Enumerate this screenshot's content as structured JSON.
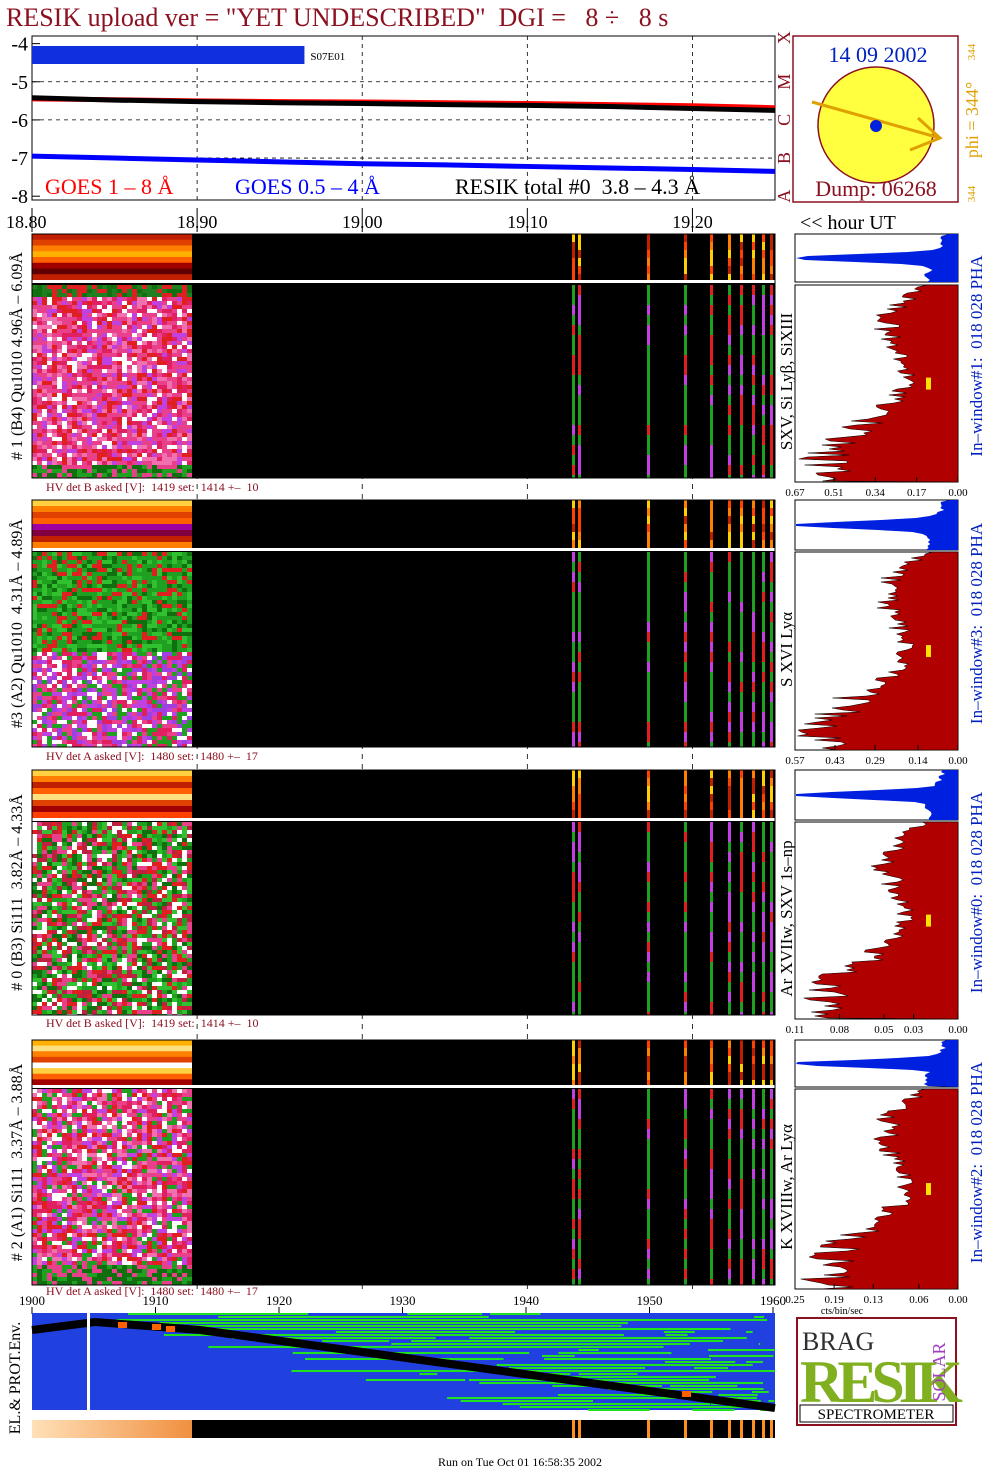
{
  "title": "RESIK upload ver = \"YET UNDESCRIBED\"  DGI =   8 ÷   8 s",
  "chart_data": {
    "type": "line",
    "x": [
      18.8,
      18.85,
      18.9,
      18.95,
      19.0,
      19.05,
      19.1,
      19.15,
      19.2,
      19.25
    ],
    "xlim": [
      18.8,
      19.25
    ],
    "xticks": [
      {
        "value": 18.8,
        "label": "18.80"
      },
      {
        "value": 18.9,
        "label": "18.90"
      },
      {
        "value": 19.0,
        "label": "19.00"
      },
      {
        "value": 19.1,
        "label": "19.10"
      },
      {
        "value": 19.2,
        "label": "19.20"
      }
    ],
    "x_label": "<< hour UT",
    "ylim": [
      -8.1,
      -3.8
    ],
    "yticks": [
      -4,
      -5,
      -6,
      -7,
      -8
    ],
    "grid": true,
    "class_labels": [
      "X",
      "M",
      "C",
      "B",
      "A"
    ],
    "series": [
      {
        "name": "GOES 1 – 8 Å",
        "color": "#ff0000",
        "values": [
          -5.45,
          -5.47,
          -5.5,
          -5.52,
          -5.53,
          -5.55,
          -5.57,
          -5.6,
          -5.63,
          -5.68
        ]
      },
      {
        "name": "GOES 0.5 – 4 Å",
        "color": "#0000ff",
        "values": [
          -6.95,
          -7.0,
          -7.05,
          -7.1,
          -7.15,
          -7.18,
          -7.22,
          -7.26,
          -7.3,
          -7.35
        ]
      },
      {
        "name": "RESIK total #0  3.8 – 4.3 Å",
        "color": "#000000",
        "values": [
          -5.42,
          -5.48,
          -5.52,
          -5.55,
          -5.57,
          -5.6,
          -5.62,
          -5.65,
          -5.7,
          -5.75
        ]
      }
    ],
    "event": {
      "label": "S07E01",
      "start": 18.8,
      "end": 18.965,
      "color": "#1030e0"
    }
  },
  "sun": {
    "date": "14 09 2002",
    "phi": "phi = 344°",
    "phi_top": "344",
    "phi_bottom": "344",
    "dump": "Dump: 06268"
  },
  "detectors": [
    {
      "label": "# 1 (B4) Qu1010 4.96Å – 6.09Å",
      "line_label": "SXV, Si Lyβ, SiXIII",
      "hv": "HV det B asked [V]:  1419 set:  1414 +–  10",
      "pha_label": "In–window#1:  018 028 PHA",
      "pha_xlim": [
        0.67,
        0
      ],
      "pha_xticks": [
        0.67,
        0.51,
        0.34,
        0.17,
        {
          "value": 0,
          "label": "0.00"
        }
      ]
    },
    {
      "label": "#3 (A2) Qu1010  4.31Å – 4.89Å",
      "line_label": "S XVI Lyα",
      "hv": "HV det A asked [V]:  1480 set:  1480 +–  17",
      "pha_label": "In–window#3:  018 028 PHA",
      "pha_xlim": [
        0.57,
        0
      ],
      "pha_xticks": [
        0.57,
        0.43,
        0.29,
        0.14,
        {
          "value": 0,
          "label": "0.00"
        }
      ]
    },
    {
      "label": "# 0 (B3) Si111  3.82Å – 4.33Å",
      "line_label": "Ar XVIIw, SXV 1s–np",
      "hv": "HV det B asked [V]:  1419 set:  1414 +–  10",
      "pha_label": "In–window#0:  018 028 PHA",
      "pha_xlim": [
        0.11,
        0
      ],
      "pha_xticks": [
        0.11,
        0.08,
        0.05,
        0.03,
        {
          "value": 0,
          "label": "0.00"
        }
      ]
    },
    {
      "label": "# 2 (A1) Si111  3.37Å – 3.88Å",
      "line_label": "K XVIIIw, Ar Lyα",
      "hv": "HV det A asked [V]:  1480 set:  1480 +–  17",
      "pha_label": "In–window#2:  018 028 PHA",
      "pha_xlim": [
        0.25,
        0
      ],
      "pha_xticks": [
        0.25,
        0.19,
        0.13,
        0.06,
        {
          "value": 0,
          "label": "0.00"
        }
      ]
    }
  ],
  "pha_axis_label": "cts/bin/sec",
  "env": {
    "label": "EL.& PROT.Env.",
    "xlim": [
      1900,
      1960
    ],
    "xticks": [
      1900,
      1910,
      1920,
      1930,
      1940,
      1950,
      1960
    ]
  },
  "logo": {
    "top": "BRAG",
    "main": "RESIK",
    "side": "SOLAR",
    "bottom": "SPECTROMETER"
  },
  "footer": "Run on Tue Oct 01 16:58:35 2002"
}
